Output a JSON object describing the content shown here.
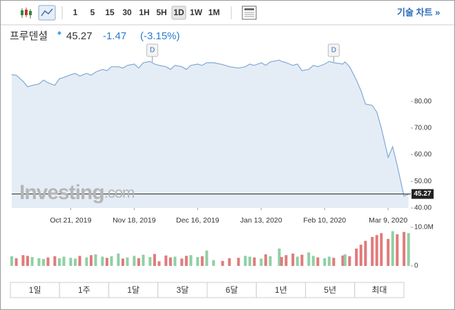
{
  "toolbar": {
    "intervals": [
      "1",
      "5",
      "15",
      "30",
      "1H",
      "5H",
      "1D",
      "1W",
      "1M"
    ],
    "active": "1D",
    "advanced": "기술 차트 »"
  },
  "header": {
    "name": "프루덴셜",
    "change": -1.47,
    "change_pct": "(-3.15%)"
  },
  "watermark": [
    "Investing",
    ".com"
  ],
  "ranges": [
    "1일",
    "1주",
    "1달",
    "3달",
    "6달",
    "1년",
    "5년",
    "최대"
  ],
  "chart_data": {
    "type": "line",
    "x": [
      "2019-09-25",
      "2019-09-27",
      "2019-09-30",
      "2019-10-02",
      "2019-10-04",
      "2019-10-07",
      "2019-10-09",
      "2019-10-11",
      "2019-10-14",
      "2019-10-16",
      "2019-10-18",
      "2019-10-21",
      "2019-10-23",
      "2019-10-25",
      "2019-10-28",
      "2019-10-30",
      "2019-11-01",
      "2019-11-04",
      "2019-11-06",
      "2019-11-08",
      "2019-11-11",
      "2019-11-13",
      "2019-11-15",
      "2019-11-18",
      "2019-11-20",
      "2019-11-22",
      "2019-11-25",
      "2019-11-27",
      "2019-11-29",
      "2019-12-02",
      "2019-12-04",
      "2019-12-06",
      "2019-12-09",
      "2019-12-11",
      "2019-12-13",
      "2019-12-16",
      "2019-12-18",
      "2019-12-20",
      "2019-12-23",
      "2019-12-27",
      "2019-12-30",
      "2020-01-03",
      "2020-01-06",
      "2020-01-08",
      "2020-01-10",
      "2020-01-13",
      "2020-01-15",
      "2020-01-17",
      "2020-01-21",
      "2020-01-22",
      "2020-01-24",
      "2020-01-27",
      "2020-01-29",
      "2020-01-31",
      "2020-02-03",
      "2020-02-05",
      "2020-02-07",
      "2020-02-10",
      "2020-02-12",
      "2020-02-14",
      "2020-02-18",
      "2020-02-19",
      "2020-02-21",
      "2020-02-24",
      "2020-02-26",
      "2020-02-28",
      "2020-03-02",
      "2020-03-04",
      "2020-03-06",
      "2020-03-09",
      "2020-03-11",
      "2020-03-13",
      "2020-03-16",
      "2020-03-18"
    ],
    "series": [
      {
        "name": "Price",
        "color": "#7fa8d4",
        "fill": "#e4edf6",
        "values": [
          90.0,
          89.8,
          87.5,
          85.5,
          86.0,
          86.5,
          88.0,
          87.0,
          86.0,
          88.5,
          89.0,
          90.0,
          90.5,
          89.5,
          90.5,
          89.8,
          91.0,
          92.0,
          91.5,
          93.0,
          93.0,
          92.5,
          93.5,
          94.0,
          92.5,
          94.5,
          95.0,
          94.0,
          93.5,
          93.0,
          92.0,
          93.5,
          93.0,
          92.0,
          93.5,
          94.0,
          93.5,
          94.5,
          94.5,
          93.8,
          93.0,
          92.5,
          93.0,
          94.0,
          93.5,
          94.5,
          93.5,
          94.8,
          95.5,
          95.0,
          94.5,
          93.5,
          94.0,
          91.5,
          92.0,
          93.5,
          93.0,
          94.0,
          95.0,
          94.5,
          94.0,
          94.8,
          93.0,
          88.0,
          84.0,
          79.0,
          78.5,
          76.0,
          70.0,
          59.0,
          63.0,
          56.0,
          44.5,
          45.27
        ]
      },
      {
        "name": "Volume",
        "axis": "y2",
        "up_color": "#8fd0a4",
        "down_color": "#e07b7b",
        "values": [
          2500000,
          2000000,
          2800000,
          2600000,
          2300000,
          2000000,
          1800000,
          2200000,
          2500000,
          2000000,
          2400000,
          2100000,
          1900000,
          2600000,
          2200000,
          2800000,
          3000000,
          2400000,
          2100000,
          2500000,
          3200000,
          1900000,
          2200000,
          2600000,
          2000000,
          2900000,
          2300000,
          3100000,
          1200000,
          2700000,
          2200000,
          2400000,
          1900000,
          2600000,
          2800000,
          2300000,
          2500000,
          4000000,
          1500000,
          1300000,
          2000000,
          2100000,
          2600000,
          2400000,
          2200000,
          1900000,
          3000000,
          2500000,
          4500000,
          2300000,
          2800000,
          3200000,
          2400000,
          2900000,
          3500000,
          2600000,
          2200000,
          2000000,
          2400000,
          2100000,
          2700000,
          3000000,
          2500000,
          4500000,
          5500000,
          6500000,
          7500000,
          8000000,
          8500000,
          7000000,
          9000000,
          8200000,
          8800000,
          8500000
        ]
      }
    ],
    "xlim": [
      "2019-09-25",
      "2020-03-19"
    ],
    "xticks": [
      {
        "value": "2019-10-21",
        "label": "Oct 21, 2019"
      },
      {
        "value": "2019-11-18",
        "label": "Nov 18, 2019"
      },
      {
        "value": "2019-12-16",
        "label": "Dec 16, 2019"
      },
      {
        "value": "2020-01-13",
        "label": "Jan 13, 2020"
      },
      {
        "value": "2020-02-10",
        "label": "Feb 10, 2020"
      },
      {
        "value": "2020-03-09",
        "label": "Mar 9, 2020"
      }
    ],
    "ylim": [
      40,
      102
    ],
    "yticks": [
      {
        "value": 40,
        "label": "40.00"
      },
      {
        "value": 50,
        "label": "50.00"
      },
      {
        "value": 60,
        "label": "60.00"
      },
      {
        "value": 70,
        "label": "70.00"
      },
      {
        "value": 80,
        "label": "80.00"
      }
    ],
    "y2lim": [
      0,
      10000000
    ],
    "y2ticks": [
      0,
      {
        "value": 10000000,
        "label": "10.0M"
      }
    ],
    "annotations": [
      {
        "x": "2019-11-26",
        "label": "D"
      },
      {
        "x": "2020-02-14",
        "label": "D"
      }
    ]
  }
}
